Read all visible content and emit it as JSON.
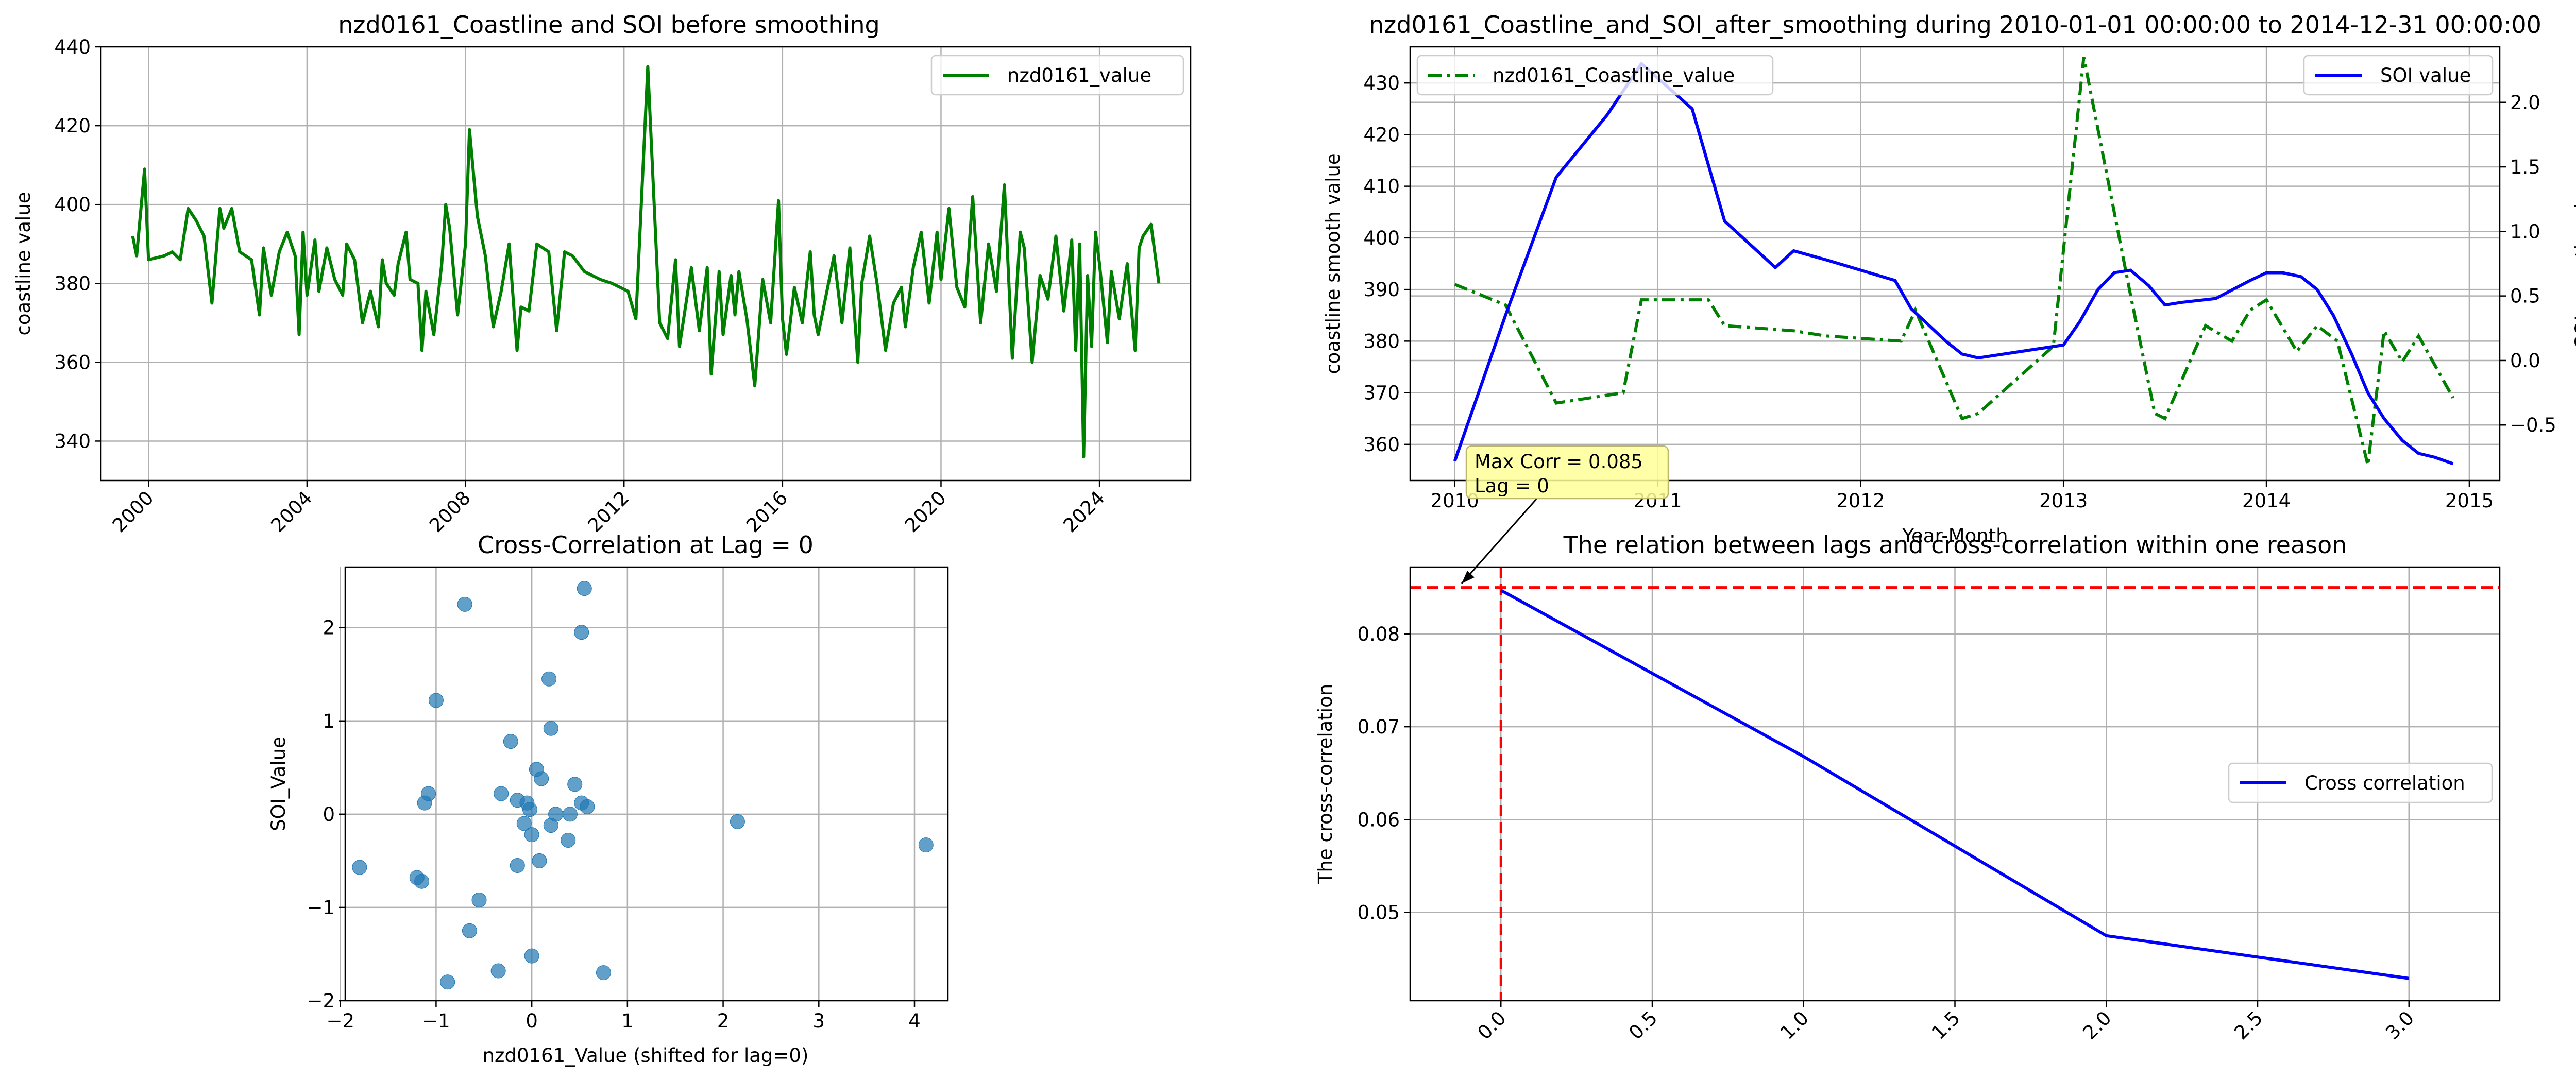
{
  "chart_data": [
    {
      "id": "raw",
      "type": "line",
      "title": "nzd0161_Coastline and SOI before smoothing",
      "xlabel": "",
      "ylabel": "coastline value",
      "xlim": [
        1998.8,
        2026.3
      ],
      "ylim": [
        330,
        440
      ],
      "xticks": [
        2000,
        2004,
        2008,
        2012,
        2016,
        2020,
        2024
      ],
      "xtick_labels": [
        "2000",
        "2004",
        "2008",
        "2012",
        "2016",
        "2020",
        "2024"
      ],
      "yticks": [
        340,
        360,
        380,
        400,
        420,
        440
      ],
      "grid": true,
      "legend": "upper right",
      "series": [
        {
          "name": "nzd0161_value",
          "color": "#008000",
          "x": [
            1999.6,
            1999.7,
            1999.9,
            2000.0,
            2000.4,
            2000.6,
            2000.8,
            2001.0,
            2001.2,
            2001.4,
            2001.6,
            2001.8,
            2001.9,
            2002.1,
            2002.3,
            2002.6,
            2002.8,
            2002.9,
            2003.1,
            2003.3,
            2003.5,
            2003.7,
            2003.8,
            2003.9,
            2004.0,
            2004.2,
            2004.3,
            2004.5,
            2004.7,
            2004.9,
            2005.0,
            2005.2,
            2005.4,
            2005.6,
            2005.8,
            2005.9,
            2006.0,
            2006.2,
            2006.3,
            2006.5,
            2006.6,
            2006.8,
            2006.9,
            2007.0,
            2007.2,
            2007.4,
            2007.5,
            2007.6,
            2007.8,
            2008.0,
            2008.1,
            2008.3,
            2008.5,
            2008.7,
            2008.9,
            2009.1,
            2009.3,
            2009.4,
            2009.6,
            2009.8,
            2010.1,
            2010.3,
            2010.5,
            2010.7,
            2011.0,
            2011.2,
            2011.4,
            2011.7,
            2012.1,
            2012.3,
            2012.6,
            2012.9,
            2013.1,
            2013.3,
            2013.4,
            2013.7,
            2013.9,
            2014.1,
            2014.2,
            2014.4,
            2014.5,
            2014.7,
            2014.8,
            2014.9,
            2015.1,
            2015.3,
            2015.5,
            2015.7,
            2015.9,
            2016.0,
            2016.1,
            2016.3,
            2016.5,
            2016.7,
            2016.8,
            2016.9,
            2017.1,
            2017.3,
            2017.5,
            2017.7,
            2017.9,
            2018.0,
            2018.2,
            2018.4,
            2018.6,
            2018.8,
            2019.0,
            2019.1,
            2019.3,
            2019.5,
            2019.7,
            2019.9,
            2020.0,
            2020.2,
            2020.4,
            2020.6,
            2020.8,
            2021.0,
            2021.2,
            2021.4,
            2021.6,
            2021.8,
            2022.0,
            2022.1,
            2022.3,
            2022.5,
            2022.7,
            2022.9,
            2023.1,
            2023.3,
            2023.4,
            2023.5,
            2023.6,
            2023.7,
            2023.8,
            2023.9,
            2024.0,
            2024.2,
            2024.3,
            2024.5,
            2024.7,
            2024.9,
            2025.0,
            2025.1,
            2025.3,
            2025.5
          ],
          "y": [
            392,
            387,
            409,
            386,
            387,
            388,
            386,
            399,
            396,
            392,
            375,
            399,
            394,
            399,
            388,
            386,
            372,
            389,
            377,
            388,
            393,
            387,
            367,
            393,
            377,
            391,
            378,
            389,
            381,
            377,
            390,
            386,
            370,
            378,
            369,
            386,
            380,
            377,
            385,
            393,
            381,
            380,
            363,
            378,
            367,
            385,
            400,
            394,
            372,
            390,
            419,
            397,
            387,
            369,
            378,
            390,
            363,
            374,
            373,
            390,
            388,
            368,
            388,
            387,
            383,
            382,
            381,
            380,
            378,
            371,
            435,
            370,
            366,
            386,
            364,
            384,
            368,
            384,
            357,
            383,
            367,
            382,
            372,
            383,
            371,
            354,
            381,
            370,
            401,
            371,
            362,
            379,
            370,
            388,
            372,
            367,
            377,
            387,
            370,
            389,
            360,
            380,
            392,
            379,
            363,
            375,
            379,
            369,
            384,
            393,
            375,
            393,
            381,
            399,
            379,
            374,
            402,
            370,
            390,
            378,
            405,
            361,
            393,
            389,
            360,
            382,
            376,
            392,
            373,
            391,
            363,
            390,
            336,
            382,
            364,
            393,
            385,
            365,
            383,
            371,
            385,
            363,
            389,
            392,
            395,
            380
          ]
        }
      ]
    },
    {
      "id": "smooth",
      "type": "line",
      "title": "nzd0161_Coastline_and_SOI_after_smoothing during 2010-01-01 00:00:00 to 2014-12-31 00:00:00",
      "xlabel": "Year-Month",
      "ylabel": "coastline smooth value",
      "ylabel_right": "SOI smooth value",
      "xlim": [
        2009.78,
        2015.15
      ],
      "ylim": [
        353,
        437
      ],
      "ylim_right": [
        -0.93,
        2.43
      ],
      "xticks": [
        2010,
        2011,
        2012,
        2013,
        2014,
        2015
      ],
      "xtick_labels": [
        "2010",
        "2011",
        "2012",
        "2013",
        "2014",
        "2015"
      ],
      "yticks": [
        360,
        370,
        380,
        390,
        400,
        410,
        420,
        430
      ],
      "yticks_right": [
        -0.5,
        0.0,
        0.5,
        1.0,
        1.5,
        2.0
      ],
      "ytick_labels_right": [
        "−0.5",
        "0.0",
        "0.5",
        "1.0",
        "1.5",
        "2.0"
      ],
      "grid": true,
      "series": [
        {
          "name": "nzd0161_Coastline_value",
          "axis": "left",
          "color": "#008000",
          "dash": "dashdot",
          "legend": "upper left",
          "x": [
            2010.0,
            2010.25,
            2010.5,
            2010.83,
            2010.92,
            2011.25,
            2011.33,
            2011.67,
            2011.83,
            2012.2,
            2012.27,
            2012.5,
            2012.58,
            2012.95,
            2013.1,
            2013.2,
            2013.33,
            2013.45,
            2013.5,
            2013.7,
            2013.83,
            2013.92,
            2014.0,
            2014.15,
            2014.25,
            2014.35,
            2014.5,
            2014.58,
            2014.67,
            2014.75,
            2014.92
          ],
          "y": [
            391,
            387,
            368,
            370,
            388,
            388,
            383,
            382,
            381,
            380,
            386,
            365,
            366,
            379,
            435,
            415,
            389,
            366,
            365,
            383,
            380,
            386,
            388,
            378,
            383,
            380,
            356,
            382,
            376,
            381,
            369
          ]
        },
        {
          "name": "SOI value",
          "axis": "right",
          "color": "#0000ff",
          "dash": "solid",
          "legend": "upper right",
          "x": [
            2010.0,
            2010.25,
            2010.5,
            2010.75,
            2010.92,
            2011.17,
            2011.33,
            2011.58,
            2011.67,
            2011.83,
            2012.0,
            2012.17,
            2012.25,
            2012.42,
            2012.5,
            2012.58,
            2013.0,
            2013.08,
            2013.17,
            2013.25,
            2013.33,
            2013.42,
            2013.5,
            2013.58,
            2013.75,
            2013.92,
            2014.0,
            2014.08,
            2014.17,
            2014.25,
            2014.33,
            2014.42,
            2014.5,
            2014.58,
            2014.67,
            2014.75,
            2014.83,
            2014.92
          ],
          "y": [
            -0.78,
            0.35,
            1.42,
            1.9,
            2.3,
            1.95,
            1.08,
            0.72,
            0.85,
            0.78,
            0.7,
            0.62,
            0.4,
            0.15,
            0.05,
            0.02,
            0.12,
            0.3,
            0.55,
            0.68,
            0.7,
            0.58,
            0.43,
            0.45,
            0.48,
            0.62,
            0.68,
            0.68,
            0.65,
            0.55,
            0.35,
            0.05,
            -0.25,
            -0.45,
            -0.62,
            -0.72,
            -0.75,
            -0.8
          ]
        }
      ]
    },
    {
      "id": "scatter",
      "type": "scatter",
      "title": "Cross-Correlation at Lag = 0",
      "xlabel": "nzd0161_Value (shifted for lag=0)",
      "ylabel": "SOI_Value",
      "xlim": [
        -1.95,
        4.35
      ],
      "ylim": [
        -2.0,
        2.65
      ],
      "xticks": [
        -2,
        -1,
        0,
        1,
        2,
        3,
        4
      ],
      "xtick_labels": [
        "−2",
        "−1",
        "0",
        "1",
        "2",
        "3",
        "4"
      ],
      "yticks": [
        -2,
        -1,
        0,
        1,
        2
      ],
      "ytick_labels": [
        "−2",
        "−1",
        "0",
        "1",
        "2"
      ],
      "grid": true,
      "color": "#1f77b4",
      "points": [
        [
          -0.7,
          2.25
        ],
        [
          0.55,
          2.42
        ],
        [
          0.52,
          1.95
        ],
        [
          -1.0,
          1.22
        ],
        [
          0.18,
          1.45
        ],
        [
          0.2,
          0.92
        ],
        [
          -0.22,
          0.78
        ],
        [
          0.05,
          0.48
        ],
        [
          0.1,
          0.38
        ],
        [
          0.45,
          0.32
        ],
        [
          -1.08,
          0.22
        ],
        [
          -1.12,
          0.12
        ],
        [
          -0.32,
          0.22
        ],
        [
          -0.15,
          0.15
        ],
        [
          -0.05,
          0.12
        ],
        [
          0.52,
          0.12
        ],
        [
          0.58,
          0.08
        ],
        [
          -0.02,
          0.05
        ],
        [
          0.25,
          0.0
        ],
        [
          0.4,
          0.0
        ],
        [
          -0.08,
          -0.1
        ],
        [
          0.2,
          -0.12
        ],
        [
          0.0,
          -0.22
        ],
        [
          0.38,
          -0.28
        ],
        [
          -0.15,
          -0.55
        ],
        [
          0.08,
          -0.5
        ],
        [
          2.15,
          -0.08
        ],
        [
          4.12,
          -0.33
        ],
        [
          -1.8,
          -0.57
        ],
        [
          -1.2,
          -0.68
        ],
        [
          -1.15,
          -0.72
        ],
        [
          -0.55,
          -0.92
        ],
        [
          -0.65,
          -1.25
        ],
        [
          0.0,
          -1.52
        ],
        [
          -0.35,
          -1.68
        ],
        [
          0.75,
          -1.7
        ],
        [
          -0.88,
          -1.8
        ]
      ]
    },
    {
      "id": "lags",
      "type": "line",
      "title": "The relation between lags and cross-correlation within one reason",
      "xlabel": "",
      "ylabel": "The cross-correlation",
      "xlim": [
        -0.3,
        3.3
      ],
      "ylim": [
        0.0405,
        0.0872
      ],
      "xticks": [
        0.0,
        0.5,
        1.0,
        1.5,
        2.0,
        2.5,
        3.0
      ],
      "xtick_labels": [
        "0.0",
        "0.5",
        "1.0",
        "1.5",
        "2.0",
        "2.5",
        "3.0"
      ],
      "yticks": [
        0.05,
        0.06,
        0.07,
        0.08
      ],
      "ytick_labels": [
        "0.05",
        "0.06",
        "0.07",
        "0.08"
      ],
      "grid": true,
      "legend": "center right",
      "series": [
        {
          "name": "Cross correlation",
          "color": "#0000ff",
          "x": [
            0,
            1,
            2,
            3
          ],
          "y": [
            0.0847,
            0.0668,
            0.0475,
            0.0429
          ]
        }
      ],
      "ref_lines": {
        "x": 0,
        "y": 0.085,
        "color": "#ff0000"
      },
      "annotation": {
        "text_line1": "Max Corr = 0.085",
        "text_line2": "Lag = 0",
        "x": 0,
        "y": 0.0847,
        "box_color": "#ffff99"
      }
    }
  ]
}
